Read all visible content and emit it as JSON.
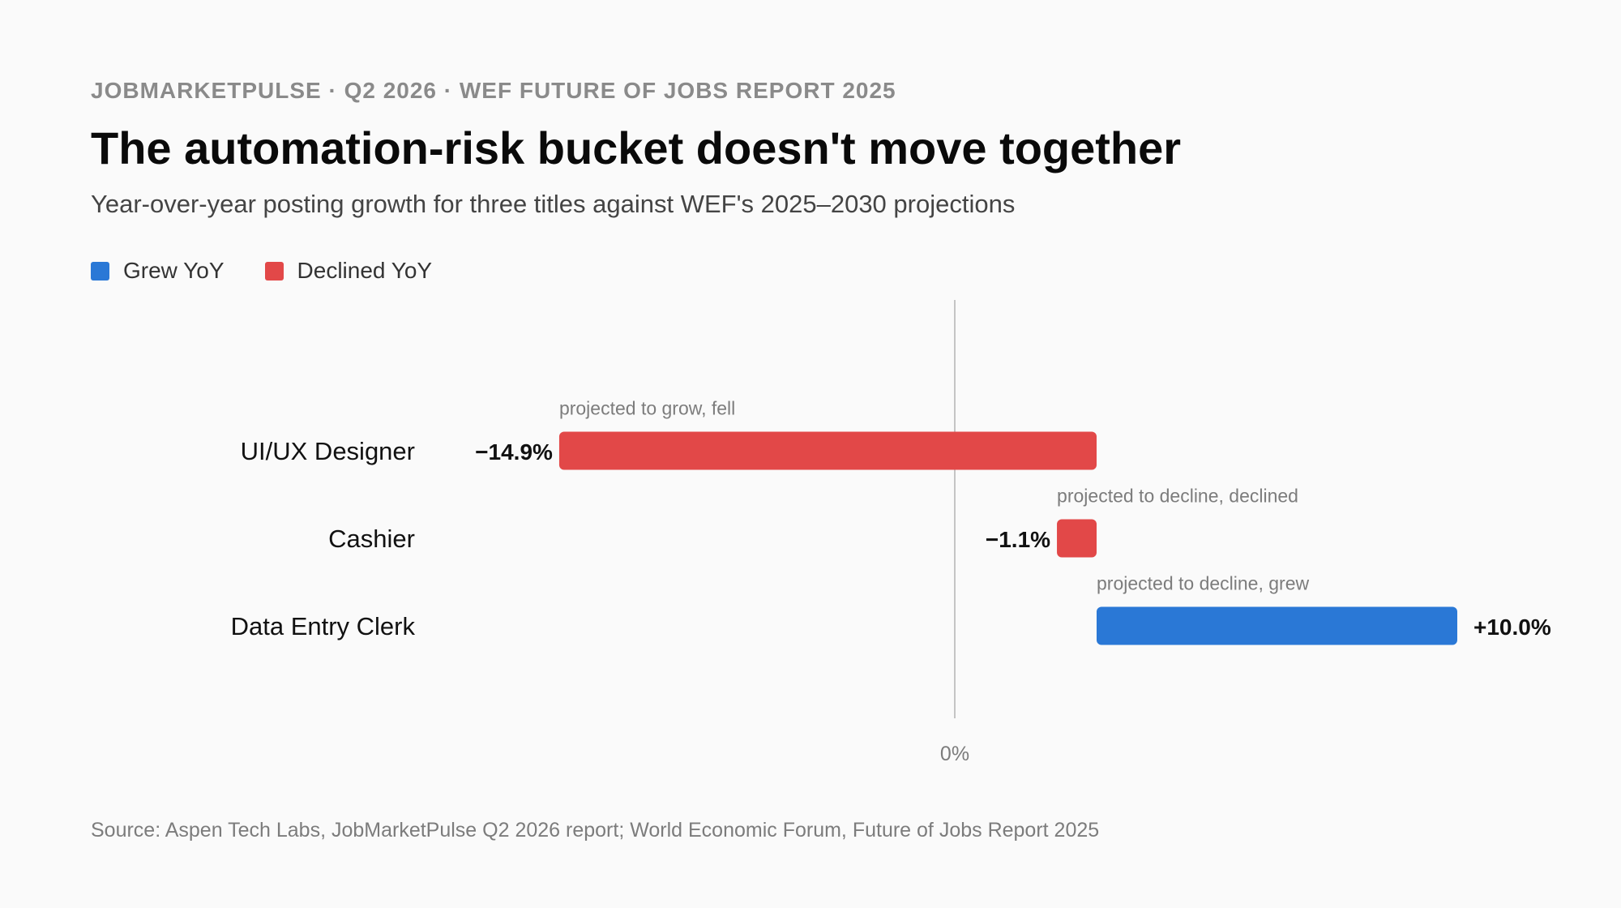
{
  "header": {
    "kicker": "JOBMARKETPULSE · Q2 2026 · WEF FUTURE OF JOBS REPORT 2025",
    "title": "The automation-risk bucket doesn't move together",
    "subtitle": "Year-over-year posting growth for three titles against WEF's 2025–2030 projections"
  },
  "legend": [
    {
      "label": "Grew YoY",
      "color": "#2a78d6"
    },
    {
      "label": "Declined YoY",
      "color": "#e24848"
    }
  ],
  "source": "Source: Aspen Tech Labs, JobMarketPulse Q2 2026 report; World Economic Forum, Future of Jobs Report 2025",
  "chart_data": {
    "type": "bar",
    "orientation": "horizontal",
    "baseline_label": "0%",
    "colors": {
      "grew": "#2a78d6",
      "declined": "#e24848"
    },
    "categories": [
      "UI/UX Designer",
      "Cashier",
      "Data Entry Clerk"
    ],
    "values": [
      -14.9,
      -1.1,
      10.0
    ],
    "value_labels": [
      "−14.9%",
      "−1.1%",
      "+10.0%"
    ],
    "annotations": [
      "projected to grow, fell",
      "projected to decline, declined",
      "projected to decline, grew"
    ],
    "grid": false,
    "legend_position": "top-left"
  }
}
